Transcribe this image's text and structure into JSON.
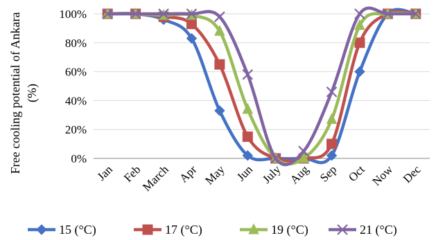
{
  "chart_data": {
    "type": "line",
    "title": "",
    "xlabel": "",
    "ylabel": "Free cooling potential of Ankara (%)",
    "ylabel_lines": [
      "Free cooling potential of Ankara",
      "(%)"
    ],
    "categories": [
      "Jan",
      "Feb",
      "March",
      "Apr",
      "May",
      "Jun",
      "July",
      "Aug",
      "Sep",
      "Oct",
      "Now",
      "Dec"
    ],
    "yticks": [
      "0%",
      "20%",
      "40%",
      "60%",
      "80%",
      "100%"
    ],
    "ylim": [
      0,
      100
    ],
    "grid": "horizontal major gridlines",
    "legend_position": "bottom",
    "smooth": true,
    "series": [
      {
        "name": "15 (°C)",
        "color": "#4472C4",
        "marker": "diamond",
        "values": [
          100,
          100,
          96,
          83,
          33,
          2,
          0,
          0,
          2,
          60,
          100,
          100
        ]
      },
      {
        "name": "17 (°C)",
        "color": "#C0504D",
        "marker": "square",
        "values": [
          100,
          100,
          98,
          93,
          65,
          15,
          0,
          0,
          10,
          80,
          100,
          100
        ]
      },
      {
        "name": "19 (°C)",
        "color": "#9BBB59",
        "marker": "triangle",
        "values": [
          100,
          100,
          99,
          99,
          88,
          34,
          0,
          0,
          27,
          92,
          100,
          100
        ]
      },
      {
        "name": "21 (°C)",
        "color": "#8064A2",
        "marker": "x",
        "values": [
          100,
          100,
          100,
          100,
          98,
          58,
          0,
          5,
          46,
          100,
          100,
          100
        ]
      }
    ]
  }
}
